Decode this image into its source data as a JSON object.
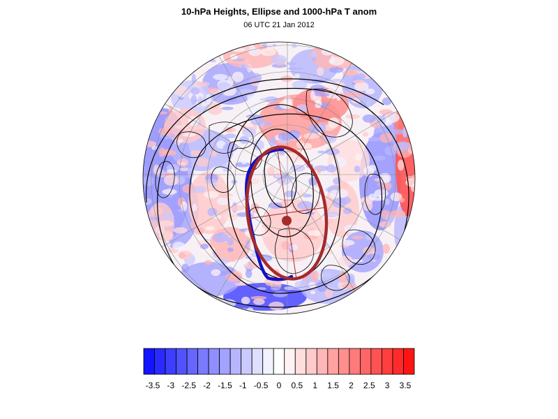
{
  "title": "10-hPa Heights, Ellipse and 1000-hPa T anom",
  "subtitle": "06 UTC 21 Jan 2012",
  "colors": {
    "ellipse": "#a52a2a",
    "tracker": "#1010c8",
    "contour": "#000000",
    "coast": "#000000",
    "grid": "#8a8a8a"
  },
  "colorbar": {
    "colors": [
      "#1414ff",
      "#2a2aff",
      "#3e3eff",
      "#5252ff",
      "#6666ff",
      "#7a7aff",
      "#8e8eff",
      "#a2a2ff",
      "#b6b6ff",
      "#cacaff",
      "#dedeff",
      "#f2f2ff",
      "#ffffff",
      "#fff2f2",
      "#ffdede",
      "#ffcaca",
      "#ffb6b6",
      "#ffa2a2",
      "#ff8e8e",
      "#ff7a7a",
      "#ff6666",
      "#ff5252",
      "#ff3e3e",
      "#ff2a2a",
      "#ff1414"
    ],
    "labels": [
      "-3.5",
      "-3",
      "-2.5",
      "-2",
      "-1.5",
      "-1",
      "-0.5",
      "0",
      "0.5",
      "1",
      "1.5",
      "2",
      "2.5",
      "3",
      "3.5"
    ]
  }
}
